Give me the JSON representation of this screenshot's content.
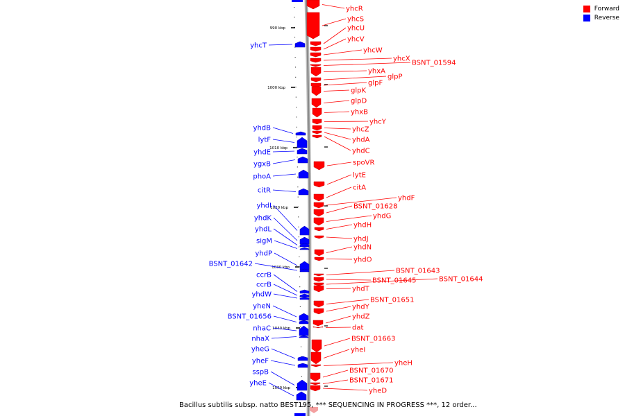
{
  "legend": {
    "forward_label": "Forward",
    "reverse_label": "Reverse",
    "forward_color": "#ff0000",
    "reverse_color": "#0000ff"
  },
  "caption": "Bacillus subtilis subsp. natto BEST195, *** SEQUENCING IN PROGRESS ***, 12 order...",
  "axis": {
    "ticks": [
      "990 kbp",
      "1000 kbp",
      "1010 kbp",
      "1020 kbp",
      "1030 kbp",
      "1040 kbp",
      "1050 kbp"
    ]
  },
  "forward_genes": [
    "yhcR",
    "yhcS",
    "yhcU",
    "yhcV",
    "yhcW",
    "yhcX",
    "BSNT_01594",
    "yhxA",
    "glpP",
    "glpF",
    "glpK",
    "glpD",
    "yhxB",
    "yhcY",
    "yhcZ",
    "yhdA",
    "yhdC",
    "spoVR",
    "lytE",
    "citA",
    "yhdF",
    "BSNT_01628",
    "yhdG",
    "yhdH",
    "yhdJ",
    "yhdN",
    "yhdO",
    "BSNT_01643",
    "BSNT_01645",
    "BSNT_01644",
    "yhdT",
    "BSNT_01651",
    "yhdY",
    "yhdZ",
    "dat",
    "BSNT_01663",
    "yheI",
    "yheH",
    "BSNT_01670",
    "BSNT_01671",
    "yheD"
  ],
  "reverse_genes": [
    "yhcT",
    "yhdB",
    "lytF",
    "yhdE",
    "ygxB",
    "phoA",
    "citR",
    "yhdI",
    "yhdK",
    "yhdL",
    "sigM",
    "yhdP",
    "BSNT_01642",
    "ccrB",
    "ccrB",
    "yhdW",
    "yheN",
    "BSNT_01656",
    "nhaC",
    "nhaX",
    "yheG",
    "yheF",
    "sspB",
    "yheE"
  ]
}
